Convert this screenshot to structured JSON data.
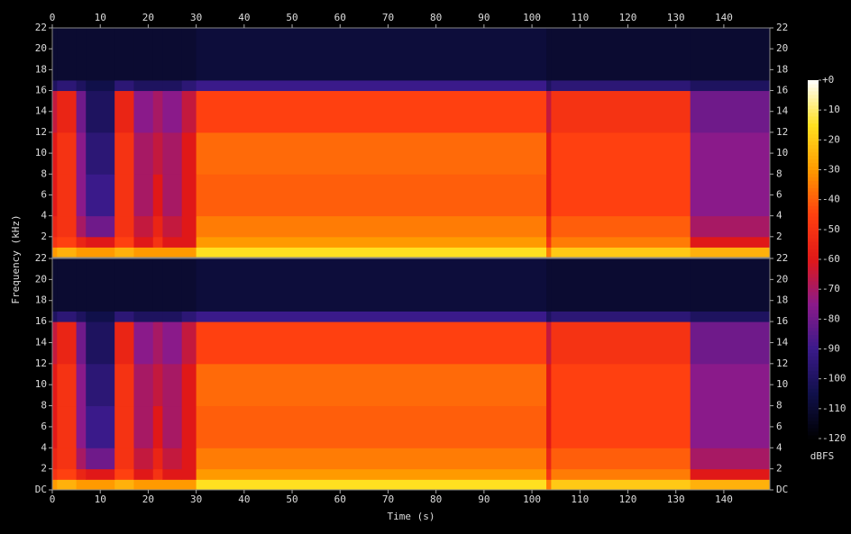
{
  "chart_data": {
    "type": "heatmap",
    "xlabel": "Time (s)",
    "ylabel": "Frequency (kHz)",
    "xlim": [
      0,
      149.6
    ],
    "xticks": [
      0,
      10,
      20,
      30,
      40,
      50,
      60,
      70,
      80,
      90,
      100,
      110,
      120,
      130,
      140
    ],
    "x_edges": [
      0,
      1,
      5,
      7,
      13,
      17,
      21,
      23,
      27,
      30,
      103,
      104,
      133,
      149.6
    ],
    "y_edges": [
      0,
      1,
      2,
      4,
      8,
      12,
      16,
      17,
      22
    ],
    "colormap": [
      "#000000",
      "#10104a",
      "#3a1a8a",
      "#8a1a8a",
      "#e01818",
      "#ff4010",
      "#ff9a00",
      "#ffe020",
      "#ffffff"
    ],
    "colorbar": {
      "label": "dBFS",
      "clim": [
        -120,
        0
      ],
      "ticks": [
        {
          "value": 0,
          "label": "+0"
        },
        -10,
        -20,
        -30,
        -40,
        -50,
        -60,
        -70,
        -80,
        -90,
        -100,
        -110,
        -120
      ]
    },
    "panels": [
      {
        "ylim": [
          0,
          22
        ],
        "yticks": [
          2,
          4,
          6,
          8,
          10,
          12,
          14,
          16,
          18,
          20,
          22
        ],
        "values": [
          [
            -30,
            -25,
            -30,
            -30,
            -25,
            -30,
            -30,
            -30,
            -30,
            -15,
            -35,
            -20,
            -25
          ],
          [
            -50,
            -45,
            -55,
            -60,
            -45,
            -60,
            -50,
            -60,
            -60,
            -30,
            -50,
            -35,
            -60
          ],
          [
            -55,
            -50,
            -70,
            -80,
            -50,
            -65,
            -55,
            -65,
            -60,
            -35,
            -55,
            -40,
            -70
          ],
          [
            -60,
            -50,
            -75,
            -90,
            -50,
            -70,
            -60,
            -70,
            -60,
            -40,
            -60,
            -45,
            -75
          ],
          [
            -60,
            -50,
            -75,
            -95,
            -50,
            -70,
            -65,
            -70,
            -60,
            -38,
            -60,
            -45,
            -75
          ],
          [
            -65,
            -55,
            -80,
            -100,
            -55,
            -75,
            -70,
            -75,
            -65,
            -45,
            -65,
            -50,
            -80
          ],
          [
            -100,
            -95,
            -100,
            -105,
            -95,
            -100,
            -100,
            -100,
            -95,
            -90,
            -100,
            -95,
            -100
          ],
          [
            -110,
            -110,
            -110,
            -110,
            -110,
            -110,
            -110,
            -110,
            -110,
            -108,
            -110,
            -110,
            -110
          ]
        ]
      },
      {
        "ylim": [
          0,
          22
        ],
        "yticks": [
          {
            "value": 0,
            "label": "DC"
          },
          2,
          4,
          6,
          8,
          10,
          12,
          14,
          16,
          18,
          20,
          22
        ],
        "values": [
          [
            -30,
            -25,
            -30,
            -30,
            -25,
            -30,
            -30,
            -30,
            -30,
            -15,
            -35,
            -20,
            -25
          ],
          [
            -50,
            -45,
            -55,
            -60,
            -45,
            -60,
            -50,
            -60,
            -60,
            -30,
            -50,
            -35,
            -60
          ],
          [
            -55,
            -50,
            -70,
            -80,
            -50,
            -65,
            -55,
            -65,
            -60,
            -35,
            -55,
            -40,
            -70
          ],
          [
            -60,
            -50,
            -75,
            -90,
            -50,
            -70,
            -60,
            -70,
            -60,
            -40,
            -60,
            -45,
            -75
          ],
          [
            -60,
            -50,
            -75,
            -95,
            -50,
            -70,
            -65,
            -70,
            -60,
            -38,
            -60,
            -45,
            -75
          ],
          [
            -65,
            -55,
            -80,
            -100,
            -55,
            -75,
            -70,
            -75,
            -65,
            -45,
            -65,
            -50,
            -80
          ],
          [
            -100,
            -95,
            -100,
            -105,
            -95,
            -100,
            -100,
            -100,
            -95,
            -90,
            -100,
            -95,
            -100
          ],
          [
            -110,
            -110,
            -110,
            -110,
            -110,
            -110,
            -110,
            -110,
            -110,
            -108,
            -110,
            -110,
            -110
          ]
        ]
      }
    ]
  }
}
